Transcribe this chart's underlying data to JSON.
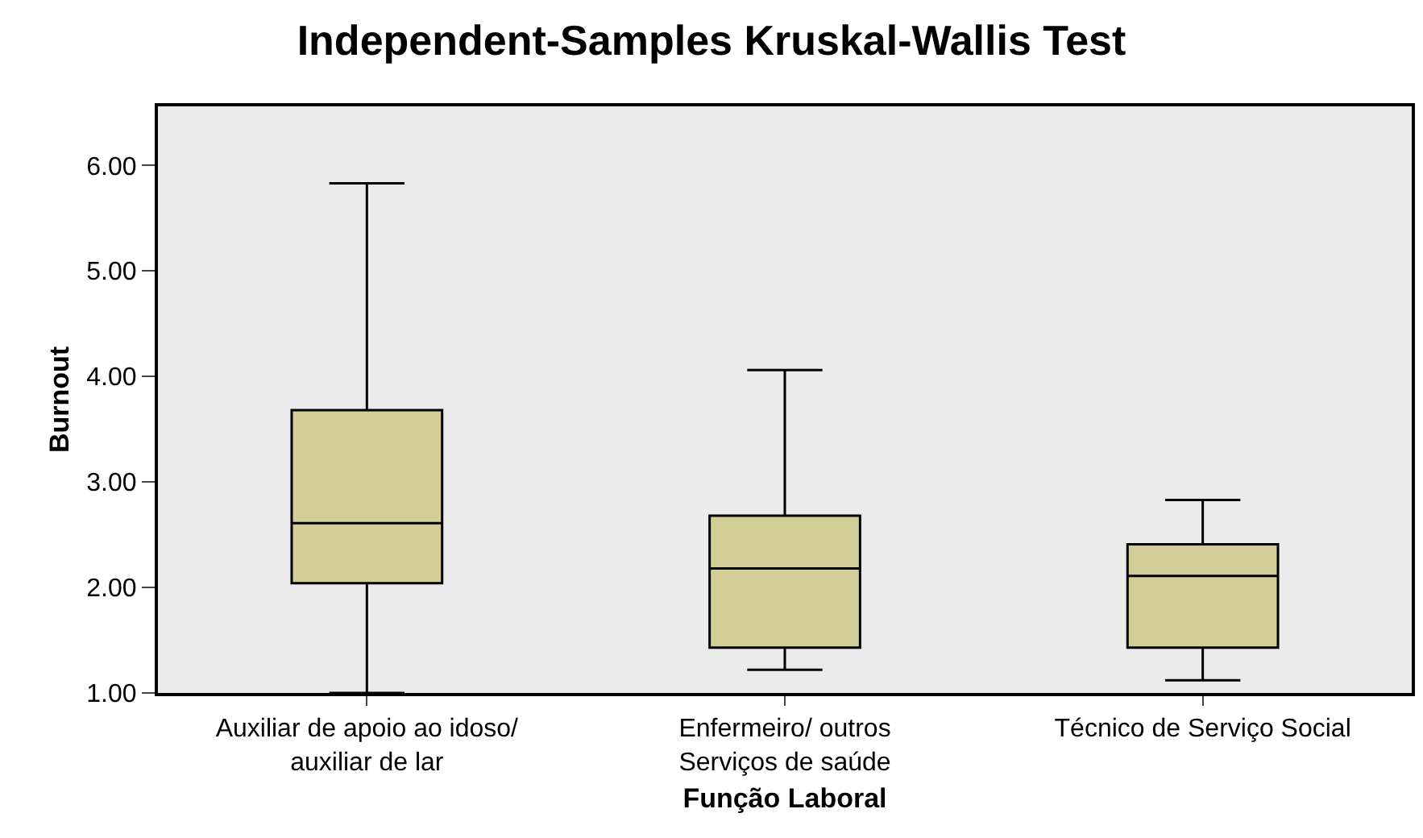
{
  "chart_data": {
    "type": "box",
    "title": "Independent-Samples Kruskal-Wallis Test",
    "xlabel": "Função Laboral",
    "ylabel": "Burnout",
    "categories": [
      "Auxiliar de apoio ao idoso/\nauxiliar de lar",
      "Enfermeiro/ outros\nServiços de saúde",
      "Técnico de Serviço Social"
    ],
    "color": "#d3ce98",
    "boxes": [
      {
        "low": 1.0,
        "q1": 2.04,
        "median": 2.61,
        "q3": 3.68,
        "high": 5.83
      },
      {
        "low": 1.22,
        "q1": 1.43,
        "median": 2.18,
        "q3": 2.68,
        "high": 4.06
      },
      {
        "low": 1.12,
        "q1": 1.43,
        "median": 2.11,
        "q3": 2.41,
        "high": 2.83
      }
    ],
    "ylim": [
      1.0,
      6.56
    ],
    "yticks": [
      {
        "value": 1,
        "label": "1.00"
      },
      {
        "value": 2,
        "label": "2.00"
      },
      {
        "value": 3,
        "label": "3.00"
      },
      {
        "value": 4,
        "label": "4.00"
      },
      {
        "value": 5,
        "label": "5.00"
      },
      {
        "value": 6,
        "label": "6.00"
      }
    ],
    "grid": false,
    "legend": false
  }
}
